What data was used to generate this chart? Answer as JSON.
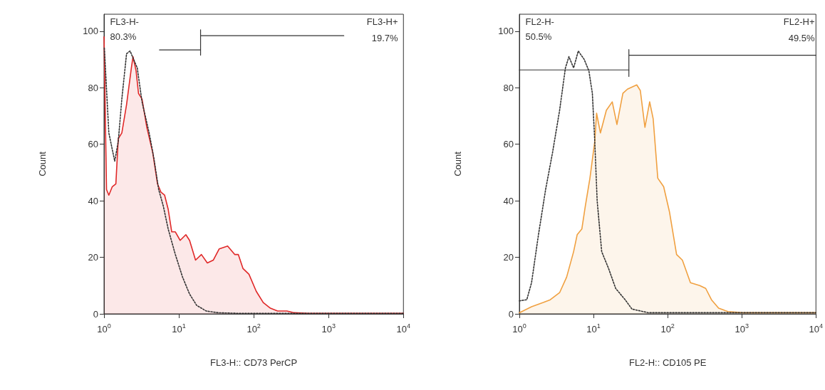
{
  "chart_data": [
    {
      "type": "area",
      "xlabel": "FL3-H:: CD73 PerCP",
      "ylabel": "Count",
      "log": "x",
      "grid": false,
      "marker": "none",
      "annotations": [
        "FL3-H-",
        "80.3%",
        "FL3-H+",
        "19.7%"
      ],
      "xlim": [
        1,
        10000
      ],
      "xticks": [
        {
          "value": 1,
          "label": "10$^{0}$"
        },
        {
          "value": 10,
          "label": "10$^{1}$"
        },
        {
          "value": 100,
          "label": "10$^{2}$"
        },
        {
          "value": 1000,
          "label": "10$^{3}$"
        },
        {
          "value": 10000,
          "label": "10$^{4}$"
        }
      ],
      "ylim": [
        0,
        106
      ],
      "yticks": [
        0,
        20,
        40,
        60,
        80,
        100
      ],
      "series": [
        {
          "color": "#e02828",
          "x": [
            1,
            1.01,
            1.08,
            1.16,
            1.29,
            1.44,
            1.55,
            1.73,
            2.0,
            2.32,
            2.44,
            2.68,
            2.89,
            3.22,
            3.73,
            4.48,
            5.18,
            5.78,
            6.45,
            7.2,
            8.03,
            8.97,
            10.4,
            12.4,
            13.9,
            16.7,
            20.0,
            24.0,
            28.8,
            34.6,
            44.8,
            55.7,
            62.2,
            72,
            86.4,
            108,
            134,
            167,
            208,
            278,
            347,
            537,
            10000
          ],
          "values": [
            98,
            92,
            44,
            42,
            45,
            46,
            62,
            64,
            74,
            87,
            91,
            86,
            78,
            76,
            66,
            57,
            46,
            43,
            42,
            37,
            29,
            29,
            26,
            28,
            26,
            19,
            21,
            18,
            19,
            23,
            24,
            21,
            21,
            16,
            14,
            8,
            4,
            2,
            1,
            1,
            0.4,
            0.2,
            0.2
          ]
        },
        {
          "type": "line",
          "line_style": "solid",
          "color": "#333333",
          "x": [
            5.5,
            19.5
          ],
          "values": [
            93.4,
            93.4
          ]
        },
        {
          "type": "line",
          "line_style": "solid",
          "color": "#333333",
          "x": [
            19.5,
            19.5,
            19.5,
            1600
          ],
          "values": [
            91.5,
            100.5,
            98.4,
            98.4
          ]
        },
        {
          "type": "line",
          "line_style": "dotted",
          "color": "#333333",
          "x": [
            1.01,
            1.16,
            1.39,
            1.55,
            1.73,
            2.0,
            2.23,
            2.78,
            3.22,
            4.01,
            4.64,
            5.37,
            6.21,
            7.2,
            8.97,
            11.2,
            13.9,
            17.3,
            23.2,
            33.3,
            60,
            10000
          ],
          "values": [
            94,
            64,
            54,
            61,
            76,
            92,
            93,
            87,
            75,
            64,
            55,
            44,
            38,
            30,
            21,
            13,
            7,
            3,
            1,
            0.4,
            0.2,
            0.2
          ]
        }
      ]
    },
    {
      "type": "area",
      "xlabel": "FL2-H:: CD105 PE",
      "ylabel": "Count",
      "log": "x",
      "grid": false,
      "marker": "none",
      "annotations": [
        "FL2-H-",
        "50.5%",
        "FL2-H+",
        "49.5%"
      ],
      "xlim": [
        1,
        10000
      ],
      "xticks": [
        {
          "value": 1,
          "label": "10$^{0}$"
        },
        {
          "value": 10,
          "label": "10$^{1}$"
        },
        {
          "value": 100,
          "label": "10$^{2}$"
        },
        {
          "value": 1000,
          "label": "10$^{3}$"
        },
        {
          "value": 10000,
          "label": "10$^{4}$"
        }
      ],
      "ylim": [
        0,
        106
      ],
      "yticks": [
        0,
        20,
        40,
        60,
        80,
        100
      ],
      "series": [
        {
          "color": "#f0a040",
          "x": [
            1,
            1.46,
            2.1,
            2.61,
            3.49,
            4.34,
            5.39,
            6.02,
            6.96,
            7.74,
            8.95,
            10.4,
            11.0,
            12.4,
            14.9,
            17.9,
            20.7,
            24.9,
            28.7,
            38.3,
            42.8,
            49.4,
            57.2,
            63.8,
            73.6,
            88.3,
            106,
            132,
            158,
            203,
            271,
            326,
            390,
            487,
            650,
            1010,
            10000
          ],
          "values": [
            0.4,
            2.5,
            4,
            5,
            7.5,
            13,
            22,
            28,
            30,
            38,
            48,
            61,
            71,
            64,
            72,
            75,
            67,
            78,
            79.5,
            81,
            79,
            66,
            75,
            69,
            48,
            45,
            36,
            21,
            19,
            11,
            10,
            9,
            5,
            2,
            0.8,
            0.4,
            0.4
          ]
        },
        {
          "type": "line",
          "line_style": "solid",
          "color": "#333333",
          "x": [
            1,
            30
          ],
          "values": [
            86.3,
            86.3
          ]
        },
        {
          "type": "line",
          "line_style": "solid",
          "color": "#333333",
          "x": [
            30,
            30,
            30,
            10000
          ],
          "values": [
            84,
            93.5,
            91.5,
            91.5
          ]
        },
        {
          "type": "line",
          "line_style": "dotted",
          "color": "#333333",
          "x": [
            1,
            1.26,
            1.46,
            1.81,
            2.26,
            2.8,
            3.49,
            4.18,
            4.66,
            5.39,
            6.23,
            7.49,
            8.66,
            9.65,
            10.4,
            11.2,
            12.9,
            16.0,
            19.9,
            26.7,
            33.0,
            55,
            10000
          ],
          "values": [
            4.6,
            5,
            11,
            28,
            44,
            57,
            72,
            87,
            91,
            87,
            93,
            90,
            86,
            78,
            61,
            40,
            22,
            16,
            9,
            5,
            1.7,
            0.4,
            0.4
          ]
        }
      ]
    }
  ]
}
